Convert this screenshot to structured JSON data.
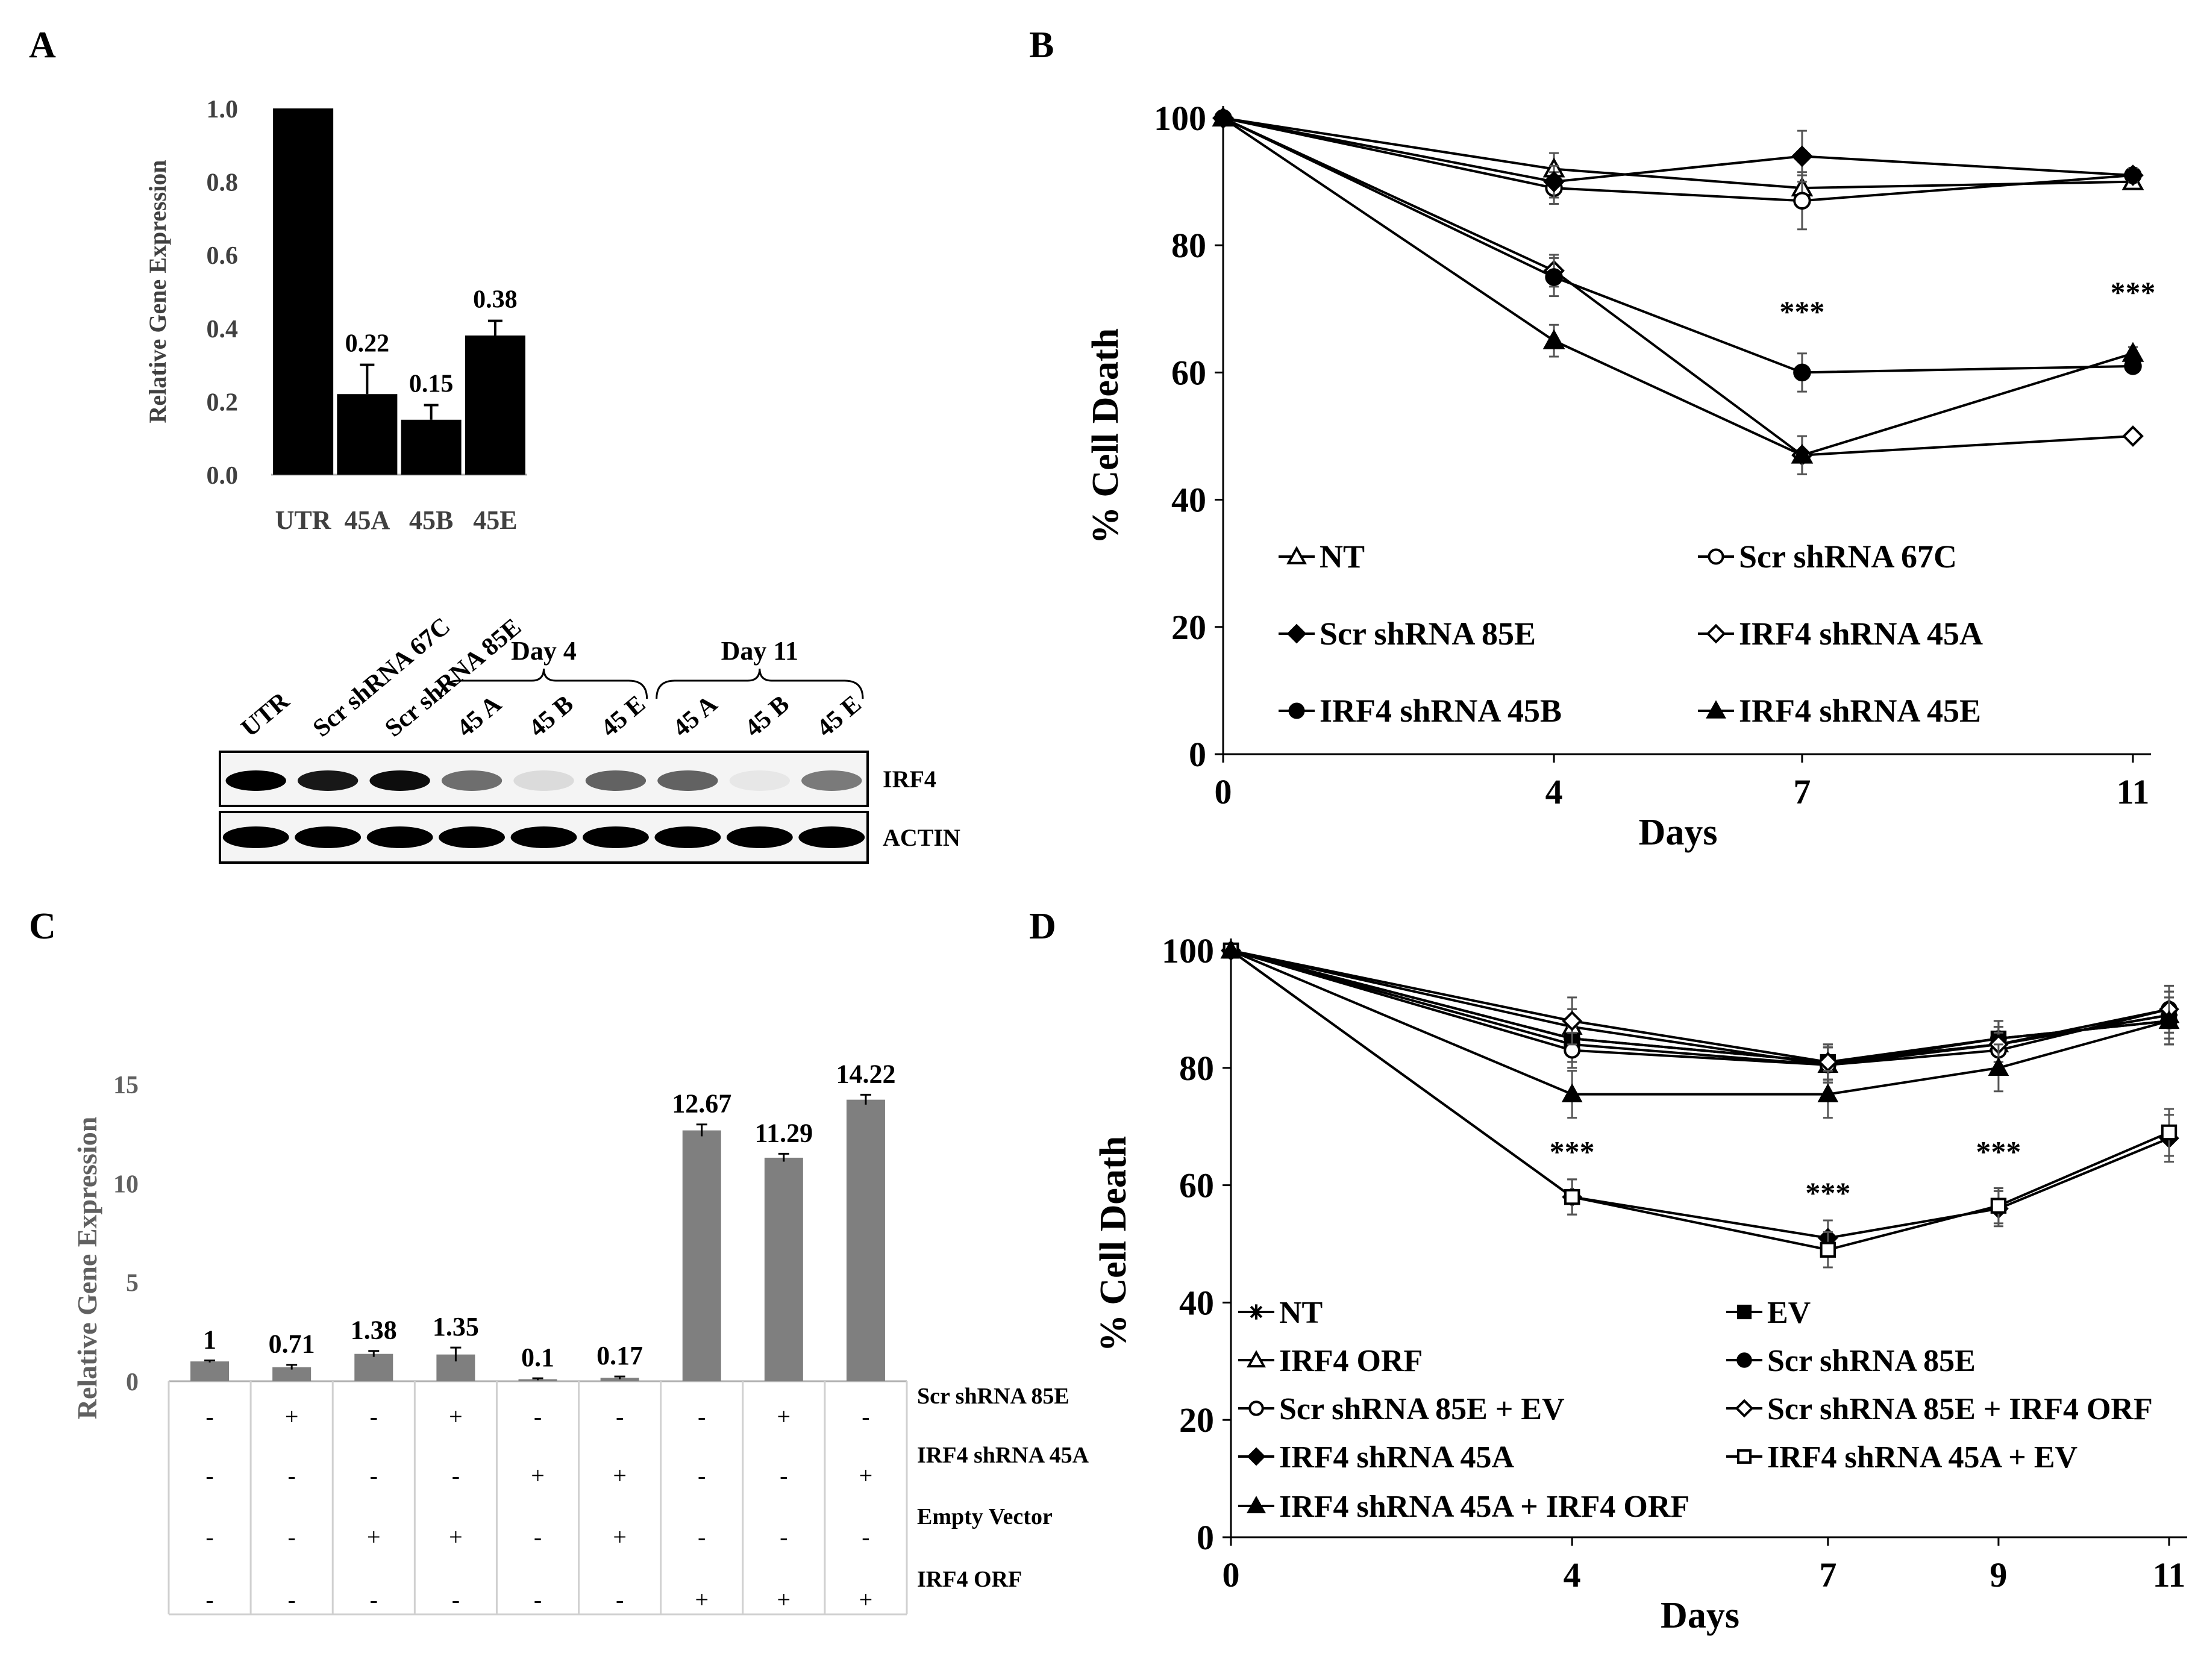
{
  "panels": {
    "A": {
      "letter": "A"
    },
    "B": {
      "letter": "B"
    },
    "C": {
      "letter": "C"
    },
    "D": {
      "letter": "D"
    }
  },
  "chart_data": [
    {
      "id": "A",
      "type": "bar",
      "ylabel": "Relative Gene Expression",
      "ylim": [
        0,
        1.0
      ],
      "yticks": [
        "0.0",
        "0.2",
        "0.4",
        "0.6",
        "0.8",
        "1.0"
      ],
      "categories": [
        "UTR",
        "45A",
        "45B",
        "45E"
      ],
      "values": [
        1.0,
        0.22,
        0.15,
        0.38
      ],
      "errors": [
        0,
        0.08,
        0.04,
        0.04
      ],
      "data_labels": [
        "",
        "0.22",
        "0.15",
        "0.38"
      ],
      "bar_color": "#000000"
    },
    {
      "id": "A-blot",
      "type": "western-blot",
      "lane_labels": [
        "UTR",
        "Scr shRNA 67C",
        "Scr shRNA 85E",
        "45 A",
        "45 B",
        "45 E",
        "45 A",
        "45 B",
        "45 E"
      ],
      "groups": [
        "Day 4",
        "Day 11"
      ],
      "rows": [
        "IRF4",
        "ACTIN"
      ],
      "irf4_intensity": [
        1.0,
        0.9,
        0.95,
        0.55,
        0.1,
        0.6,
        0.6,
        0.05,
        0.5
      ],
      "actin_intensity": [
        1,
        1,
        1,
        1,
        1,
        1,
        1,
        1,
        1
      ]
    },
    {
      "id": "B",
      "type": "line",
      "xlabel": "Days",
      "ylabel": "% Cell Death",
      "x": [
        0,
        4,
        7,
        11
      ],
      "xticks": [
        "0",
        "4",
        "7",
        "11"
      ],
      "yticks": [
        "0",
        "20",
        "40",
        "60",
        "80",
        "100"
      ],
      "ylim": [
        0,
        100
      ],
      "series": [
        {
          "name": "NT",
          "marker": "triangle-open",
          "values": [
            100,
            92,
            89,
            90
          ],
          "errors": [
            0,
            2.5,
            2,
            1
          ]
        },
        {
          "name": "Scr shRNA 67C",
          "marker": "circle-open",
          "values": [
            100,
            89,
            87,
            91
          ],
          "errors": [
            0,
            2.5,
            4.5,
            1
          ]
        },
        {
          "name": "Scr shRNA 85E",
          "marker": "diamond-filled",
          "values": [
            100,
            90,
            94,
            91
          ],
          "errors": [
            0,
            2.5,
            4,
            1
          ]
        },
        {
          "name": "IRF4 shRNA 45A",
          "marker": "diamond-open",
          "values": [
            100,
            76,
            47,
            50
          ],
          "errors": [
            0,
            2.5,
            3,
            0
          ]
        },
        {
          "name": "IRF4 shRNA 45B",
          "marker": "circle-filled",
          "values": [
            100,
            75,
            60,
            61
          ],
          "errors": [
            0,
            3,
            3,
            1
          ]
        },
        {
          "name": "IRF4 shRNA 45E",
          "marker": "triangle-filled",
          "values": [
            100,
            65,
            47,
            63
          ],
          "errors": [
            0,
            2.5,
            3,
            1
          ]
        }
      ],
      "annotations": [
        {
          "text": "***",
          "x": 7,
          "y": 68
        },
        {
          "text": "***",
          "x": 11,
          "y": 71
        }
      ]
    },
    {
      "id": "C",
      "type": "bar",
      "ylabel": "Relative Gene Expression",
      "ylim": [
        0,
        15
      ],
      "yticks": [
        "0",
        "5",
        "10",
        "15"
      ],
      "values": [
        1,
        0.71,
        1.38,
        1.35,
        0.1,
        0.17,
        12.67,
        11.29,
        14.22
      ],
      "errors": [
        0.05,
        0.12,
        0.15,
        0.35,
        0.05,
        0.07,
        0.3,
        0.2,
        0.25
      ],
      "data_labels": [
        "1",
        "0.71",
        "1.38",
        "1.35",
        "0.1",
        "0.17",
        "12.67",
        "11.29",
        "14.22"
      ],
      "bar_color": "#7f7f7f",
      "condition_table": [
        {
          "label": "Scr shRNA 85E",
          "cells": [
            "-",
            "+",
            "-",
            "+",
            "-",
            "-",
            "-",
            "+",
            "-"
          ]
        },
        {
          "label": "IRF4 shRNA 45A",
          "cells": [
            "-",
            "-",
            "-",
            "-",
            "+",
            "+",
            "-",
            "-",
            "+"
          ]
        },
        {
          "label": "Empty Vector",
          "cells": [
            "-",
            "-",
            "+",
            "+",
            "-",
            "+",
            "-",
            "-",
            "-"
          ]
        },
        {
          "label": "IRF4 ORF",
          "cells": [
            "-",
            "-",
            "-",
            "-",
            "-",
            "-",
            "+",
            "+",
            "+"
          ]
        }
      ]
    },
    {
      "id": "D",
      "type": "line",
      "xlabel": "Days",
      "ylabel": "% Cell Death",
      "x": [
        0,
        4,
        7,
        9,
        11
      ],
      "xticks": [
        "0",
        "4",
        "7",
        "9",
        "11"
      ],
      "yticks": [
        "0",
        "20",
        "40",
        "60",
        "80",
        "100"
      ],
      "ylim": [
        0,
        100
      ],
      "series": [
        {
          "name": "NT",
          "marker": "star",
          "values": [
            100,
            85,
            81,
            84,
            89
          ],
          "errors": [
            0,
            3,
            3,
            3,
            4
          ]
        },
        {
          "name": "EV",
          "marker": "square-filled",
          "values": [
            100,
            85,
            81,
            85,
            88
          ],
          "errors": [
            0,
            3,
            3,
            3,
            4
          ]
        },
        {
          "name": "IRF4 ORF",
          "marker": "triangle-open",
          "values": [
            100,
            87,
            80.5,
            84,
            89
          ],
          "errors": [
            0,
            3,
            3,
            3,
            4
          ]
        },
        {
          "name": "Scr shRNA 85E",
          "marker": "circle-filled",
          "values": [
            100,
            84,
            80.5,
            85,
            88
          ],
          "errors": [
            0,
            3,
            3,
            3,
            4
          ]
        },
        {
          "name": "Scr shRNA 85E + EV",
          "marker": "circle-open",
          "values": [
            100,
            83,
            80.5,
            83,
            90
          ],
          "errors": [
            0,
            3,
            3,
            3,
            4
          ]
        },
        {
          "name": "Scr shRNA 85E + IRF4 ORF",
          "marker": "diamond-open",
          "values": [
            100,
            88,
            81,
            84,
            90
          ],
          "errors": [
            0,
            4,
            3,
            3,
            4
          ]
        },
        {
          "name": "IRF4 shRNA 45A",
          "marker": "diamond-filled",
          "values": [
            100,
            58,
            51,
            56,
            68
          ],
          "errors": [
            0,
            3,
            3,
            3,
            4
          ]
        },
        {
          "name": "IRF4 shRNA 45A + EV",
          "marker": "square-open",
          "values": [
            100,
            58,
            49,
            56.5,
            69
          ],
          "errors": [
            0,
            3,
            3,
            3,
            4
          ]
        },
        {
          "name": "IRF4 shRNA 45A + IRF4 ORF",
          "marker": "triangle-filled",
          "values": [
            100,
            75.5,
            75.5,
            80,
            88
          ],
          "errors": [
            0,
            4,
            4,
            4,
            4
          ]
        }
      ],
      "annotations": [
        {
          "text": "***",
          "x": 4,
          "y": 64
        },
        {
          "text": "***",
          "x": 7,
          "y": 57
        },
        {
          "text": "***",
          "x": 9,
          "y": 64
        }
      ]
    }
  ]
}
